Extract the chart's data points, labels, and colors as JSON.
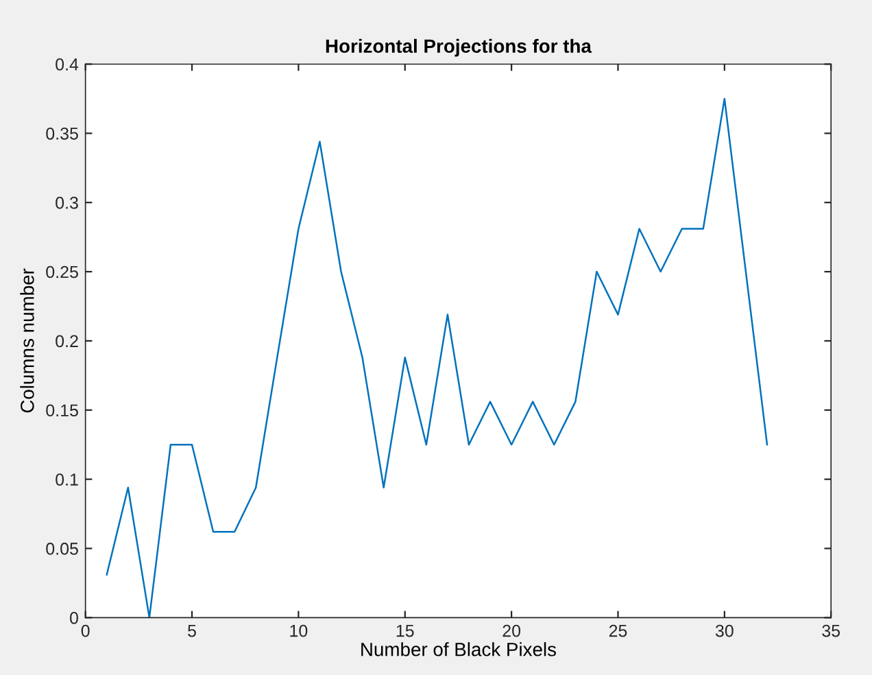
{
  "chart_data": {
    "type": "line",
    "title": "Horizontal Projections for tha",
    "xlabel": "Number of Black Pixels",
    "ylabel": "Columns number",
    "x": [
      1,
      2,
      3,
      4,
      5,
      6,
      7,
      8,
      9,
      10,
      11,
      12,
      13,
      14,
      15,
      16,
      17,
      18,
      19,
      20,
      21,
      22,
      23,
      24,
      25,
      26,
      27,
      28,
      29,
      30,
      31,
      32
    ],
    "series": [
      {
        "color": "#0072bd",
        "values": [
          0.031,
          0.094,
          0,
          0.125,
          0.125,
          0.062,
          0.062,
          0.094,
          0.188,
          0.281,
          0.344,
          0.25,
          0.188,
          0.094,
          0.188,
          0.125,
          0.219,
          0.125,
          0.156,
          0.125,
          0.156,
          0.125,
          0.156,
          0.25,
          0.219,
          0.281,
          0.25,
          0.281,
          0.281,
          0.375,
          0.25,
          0.125
        ]
      }
    ],
    "xlim": [
      0,
      35
    ],
    "xticks": [
      0,
      5,
      10,
      15,
      20,
      25,
      30,
      35
    ],
    "ylim": [
      0,
      0.4
    ],
    "yticks": [
      0,
      0.05,
      0.1,
      0.15,
      0.2,
      0.25,
      0.3,
      0.35,
      0.4
    ],
    "marker": "none",
    "line_style": "solid"
  }
}
